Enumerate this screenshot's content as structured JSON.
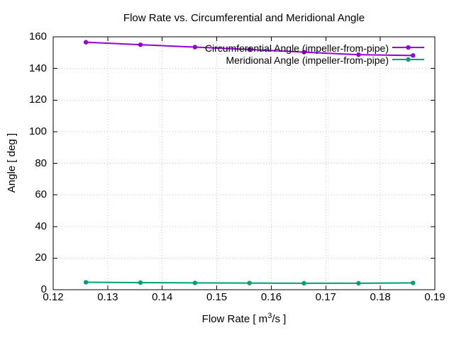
{
  "window": {
    "background": "#ffffff"
  },
  "chart_data": {
    "type": "line",
    "title": "Flow Rate vs. Circumferential and Meridional Angle",
    "xlabel": {
      "pre": "Flow Rate [ m",
      "sup": "3",
      "post": "/s ]"
    },
    "ylabel": "Angle [ deg ]",
    "xlim": [
      0.12,
      0.19
    ],
    "ylim": [
      0,
      160
    ],
    "xticks": {
      "values": [
        0.12,
        0.13,
        0.14,
        0.15,
        0.16,
        0.17,
        0.18,
        0.19
      ],
      "labels": [
        "0.12",
        "0.13",
        "0.14",
        "0.15",
        "0.16",
        "0.17",
        "0.18",
        "0.19"
      ]
    },
    "yticks": {
      "values": [
        0,
        20,
        40,
        60,
        80,
        100,
        120,
        140,
        160
      ],
      "labels": [
        "0",
        "20",
        "40",
        "60",
        "80",
        "100",
        "120",
        "140",
        "160"
      ]
    },
    "grid": true,
    "legend_position": "top-right-inside",
    "x": [
      0.126,
      0.136,
      0.146,
      0.156,
      0.166,
      0.176,
      0.186
    ],
    "series": [
      {
        "name": "Circumferential Angle (impeller-from-pipe)",
        "color": "#9400D3",
        "marker": "circle",
        "values": [
          156.6,
          155.0,
          153.5,
          152.0,
          150.3,
          148.7,
          148.2
        ]
      },
      {
        "name": "Meridional Angle (impeller-from-pipe)",
        "color": "#009E73",
        "marker": "circle",
        "values": [
          4.7,
          4.5,
          4.3,
          4.2,
          4.1,
          4.1,
          4.3
        ]
      }
    ],
    "colors": {
      "axis": "#000000",
      "grid": "#c4c4c4",
      "text": "#000000"
    }
  }
}
